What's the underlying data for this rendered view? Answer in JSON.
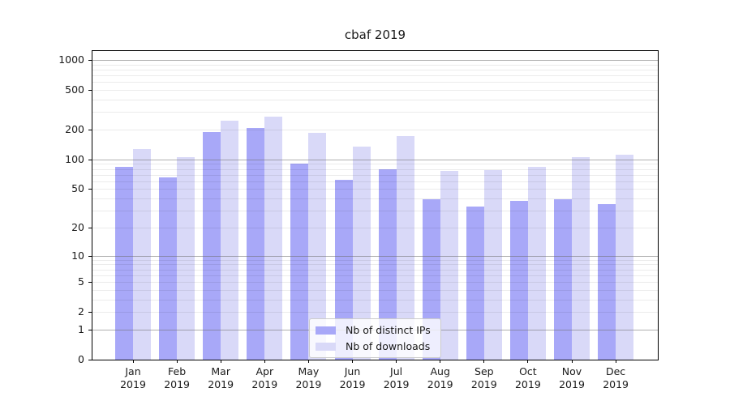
{
  "chart_data": {
    "type": "bar",
    "title": "cbaf 2019",
    "y_scale": "log10(1+x)",
    "grid": "both",
    "legend_position": "lower center",
    "categories": [
      "Jan 2019",
      "Feb 2019",
      "Mar 2019",
      "Apr 2019",
      "May 2019",
      "Jun 2019",
      "Jul 2019",
      "Aug 2019",
      "Sep 2019",
      "Oct 2019",
      "Nov 2019",
      "Dec 2019"
    ],
    "series": [
      {
        "name": "Nb of distinct IPs",
        "color": "#a8a8f8",
        "values": [
          84,
          66,
          188,
          206,
          91,
          62,
          79,
          39,
          33,
          38,
          39,
          35
        ]
      },
      {
        "name": "Nb of downloads",
        "color": "#d9d9f8",
        "values": [
          128,
          106,
          246,
          270,
          186,
          135,
          173,
          76,
          78,
          84,
          106,
          111
        ]
      }
    ],
    "y_ticks": [
      0,
      1,
      2,
      5,
      10,
      20,
      50,
      100,
      200,
      500,
      1000
    ],
    "y_minor_ticks": [
      3,
      4,
      6,
      7,
      8,
      9,
      30,
      40,
      60,
      70,
      80,
      90,
      300,
      400,
      600,
      700,
      800,
      900
    ],
    "major_grid_ticks": [
      1,
      10,
      100,
      1000
    ],
    "ylim": [
      0,
      1230
    ],
    "colors": {
      "major_grid": "rgba(110,110,110,0.55)",
      "minor_grid": "rgba(0,0,0,0.08)",
      "spine": "#000000",
      "text": "#1a1a1a"
    }
  }
}
